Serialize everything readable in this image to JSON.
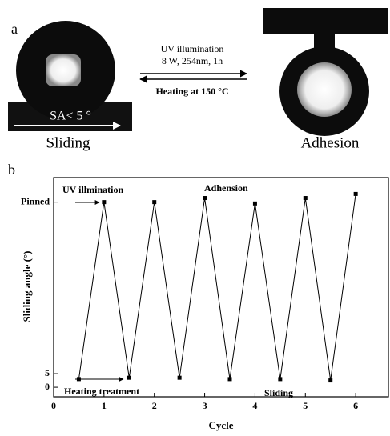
{
  "panel_a": {
    "label": "a",
    "forward_line1": "UV illumination",
    "forward_line2": "8 W, 254nm, 1h",
    "backward": "Heating at 150 °C",
    "angle_note": "SA< 5 °",
    "left_caption": "Sliding",
    "right_caption": "Adhesion"
  },
  "chart_data": {
    "type": "line",
    "panel_label": "b",
    "x_label": "Cycle",
    "y_label": "Sliding angle (°)",
    "annotations": [
      "UV illmination",
      "Adhension",
      "Heating treatment",
      "Sliding"
    ],
    "x": [
      0.5,
      1,
      1.5,
      2,
      2.5,
      3,
      3.5,
      4,
      4.5,
      5,
      5.5,
      6
    ],
    "series": [
      {
        "color": "#000000",
        "values": [
          3,
          68,
          3.5,
          68,
          3.5,
          69.5,
          3,
          67.5,
          3,
          69.5,
          2.5,
          71
        ]
      }
    ],
    "xlim": [
      0,
      6.65
    ],
    "xticks": [
      0,
      1,
      2,
      3,
      4,
      5,
      6
    ],
    "ylim": [
      -3.5,
      77
    ],
    "yticks": [
      0,
      5,
      {
        "value": 68,
        "label": "Pinned"
      }
    ],
    "grid": false
  }
}
